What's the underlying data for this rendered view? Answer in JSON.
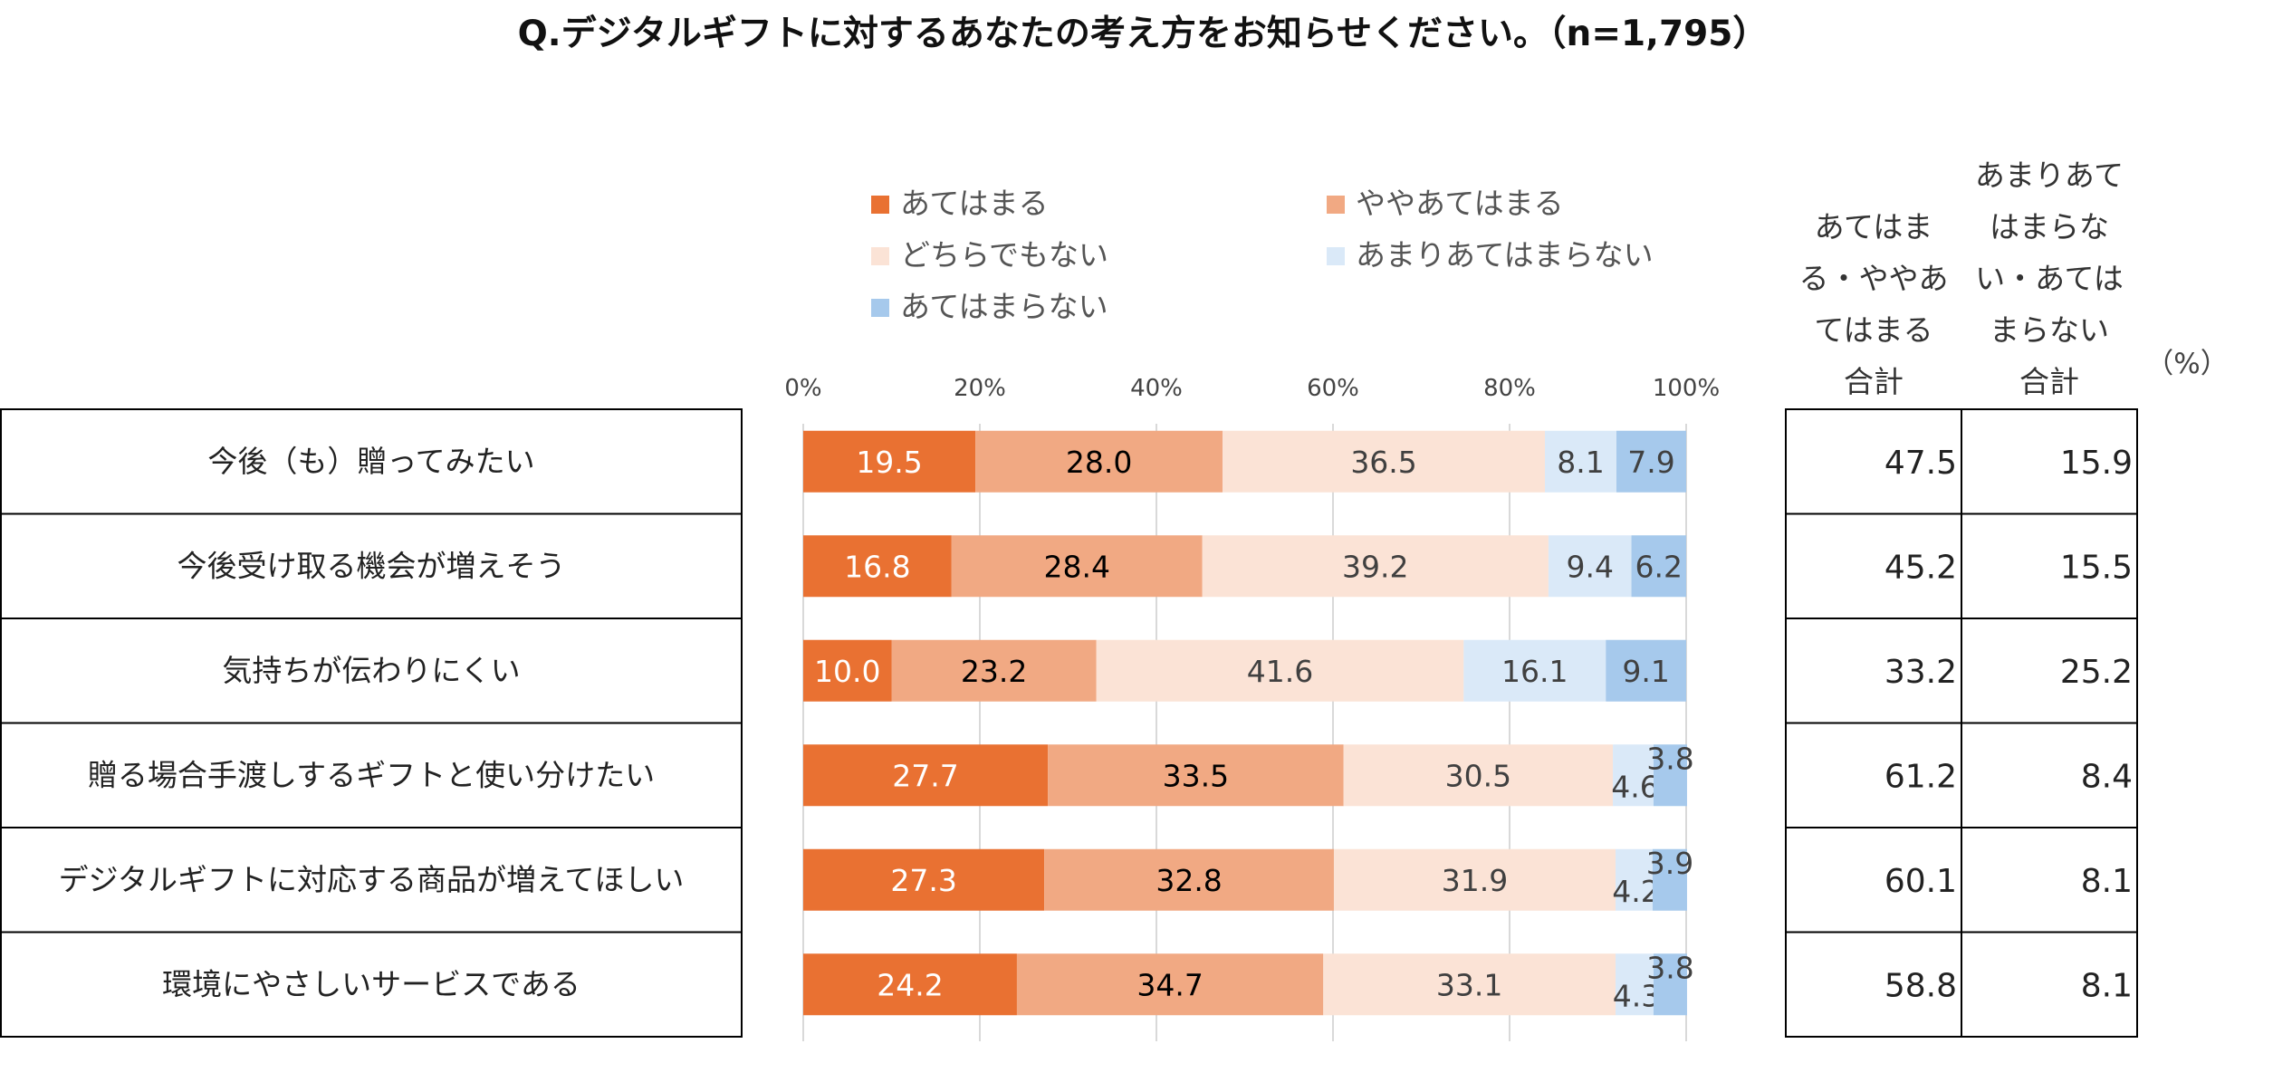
{
  "chart_data": {
    "type": "bar",
    "orientation": "horizontal",
    "stacked": true,
    "title": "Q.デジタルギフトに対するあなたの考え方をお知らせください。（n=1,795）",
    "categories": [
      "今後（も）贈ってみたい",
      "今後受け取る機会が増えそう",
      "気持ちが伝わりにくい",
      "贈る場合手渡しするギフトと使い分けたい",
      "デジタルギフトに対応する商品が増えてほしい",
      "環境にやさしいサービスである"
    ],
    "series": [
      {
        "name": "あてはまる",
        "color": "#E97132",
        "label_color": "#ffffff",
        "values": [
          19.5,
          16.8,
          10.0,
          27.7,
          27.3,
          24.2
        ]
      },
      {
        "name": "ややあてはまる",
        "color": "#F1A983",
        "label_color": "#000000",
        "values": [
          28.0,
          28.4,
          23.2,
          33.5,
          32.8,
          34.7
        ]
      },
      {
        "name": "どちらでもない",
        "color": "#FBE3D6",
        "label_color": "#404040",
        "values": [
          36.5,
          39.2,
          41.6,
          30.5,
          31.9,
          33.1
        ]
      },
      {
        "name": "あまりあてはまらない",
        "color": "#DAE9F8",
        "label_color": "#404040",
        "values": [
          8.1,
          9.4,
          16.1,
          4.6,
          4.2,
          4.3
        ]
      },
      {
        "name": "あてはまらない",
        "color": "#A6C9EC",
        "label_color": "#404040",
        "values": [
          7.9,
          6.2,
          9.1,
          3.8,
          3.9,
          3.8
        ]
      }
    ],
    "xlim": [
      0,
      100
    ],
    "x_ticks": [
      "0%",
      "20%",
      "40%",
      "60%",
      "80%",
      "100%"
    ],
    "grid": true,
    "legend_position": "top"
  },
  "totals_table": {
    "unit": "（%）",
    "headers": [
      [
        "あてはま",
        "る・ややあ",
        "てはまる",
        "合計"
      ],
      [
        "あまりあて",
        "はまらな",
        "い・あては",
        "まらない",
        "合計"
      ]
    ],
    "rows": [
      [
        "47.5",
        "15.9"
      ],
      [
        "45.2",
        "15.5"
      ],
      [
        "33.2",
        "25.2"
      ],
      [
        "61.2",
        "8.4"
      ],
      [
        "60.1",
        "8.1"
      ],
      [
        "58.8",
        "8.1"
      ]
    ]
  }
}
